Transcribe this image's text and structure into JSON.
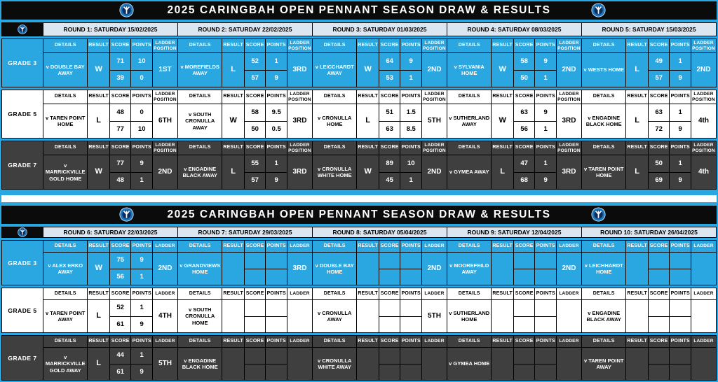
{
  "title": "2025 CARINGBAH OPEN PENNANT SEASON DRAW & RESULTS",
  "logo_name": "club-badge-logo",
  "colors": {
    "page_blue": "#2aa7e0",
    "round_header_bg": "#dce6f1",
    "grade7_dark": "#3f3f3f",
    "title_bar_black": "#0b0b0b",
    "logo_ring_blue": "#1b75bc",
    "logo_navy": "#0c2d5c"
  },
  "labels": {
    "details": "DETAILS",
    "result": "RESULT",
    "score": "SCORE",
    "points": "POINTS"
  },
  "tables": [
    {
      "ladder_label": "LADDER POSITION",
      "rounds": [
        "ROUND 1: SATURDAY 15/02/2025",
        "ROUND 2: SATURDAY 22/02/2025",
        "ROUND 3: SATURDAY 01/03/2025",
        "ROUND 4: SATURDAY 08/03/2025",
        "ROUND 5: SATURDAY 15/03/2025"
      ],
      "grades": [
        {
          "label": "GRADE 3",
          "theme": "blue",
          "cells": [
            {
              "details": "v DOUBLE BAY AWAY",
              "result": "W",
              "score_for": "71",
              "score_against": "39",
              "points_for": "10",
              "points_against": "0",
              "ladder": "1ST"
            },
            {
              "details": "v MOREFIELDS AWAY",
              "result": "L",
              "score_for": "52",
              "score_against": "57",
              "points_for": "1",
              "points_against": "9",
              "ladder": "3RD"
            },
            {
              "details": "v LEICCHARDT AWAY",
              "result": "W",
              "score_for": "64",
              "score_against": "53",
              "points_for": "9",
              "points_against": "1",
              "ladder": "2ND"
            },
            {
              "details": "v SYLVANIA HOME",
              "result": "W",
              "score_for": "58",
              "score_against": "50",
              "points_for": "9",
              "points_against": "1",
              "ladder": "2ND"
            },
            {
              "details": "v WESTS HOME",
              "result": "L",
              "score_for": "49",
              "score_against": "57",
              "points_for": "1",
              "points_against": "9",
              "ladder": "2ND"
            }
          ]
        },
        {
          "label": "GRADE 5",
          "theme": "white",
          "cells": [
            {
              "details": "v TAREN POINT HOME",
              "result": "L",
              "score_for": "48",
              "score_against": "77",
              "points_for": "0",
              "points_against": "10",
              "ladder": "6TH"
            },
            {
              "details": "v SOUTH CRONULLA AWAY",
              "result": "W",
              "score_for": "58",
              "score_against": "50",
              "points_for": "9.5",
              "points_against": "0.5",
              "ladder": "3RD"
            },
            {
              "details": "v CRONULLA HOME",
              "result": "L",
              "score_for": "51",
              "score_against": "63",
              "points_for": "1.5",
              "points_against": "8.5",
              "ladder": "5TH"
            },
            {
              "details": "v SUTHERLAND AWAY",
              "result": "W",
              "score_for": "63",
              "score_against": "56",
              "points_for": "9",
              "points_against": "1",
              "ladder": "3RD"
            },
            {
              "details": "v ENGADINE BLACK HOME",
              "result": "L",
              "score_for": "63",
              "score_against": "72",
              "points_for": "1",
              "points_against": "9",
              "ladder": "4th"
            }
          ]
        },
        {
          "label": "GRADE 7",
          "theme": "dark",
          "cells": [
            {
              "details": "v MARRICKVILLE GOLD HOME",
              "result": "W",
              "score_for": "77",
              "score_against": "48",
              "points_for": "9",
              "points_against": "1",
              "ladder": "2ND"
            },
            {
              "details": "v ENGADINE BLACK AWAY",
              "result": "L",
              "score_for": "55",
              "score_against": "57",
              "points_for": "1",
              "points_against": "9",
              "ladder": "3RD"
            },
            {
              "details": "v CRONULLA WHITE HOME",
              "result": "W",
              "score_for": "89",
              "score_against": "45",
              "points_for": "10",
              "points_against": "1",
              "ladder": "2ND"
            },
            {
              "details": "v GYMEA AWAY",
              "result": "L",
              "score_for": "47",
              "score_against": "68",
              "points_for": "1",
              "points_against": "9",
              "ladder": "3RD"
            },
            {
              "details": "v TAREN POINT HOME",
              "result": "L",
              "score_for": "50",
              "score_against": "69",
              "points_for": "1",
              "points_against": "9",
              "ladder": "4th"
            }
          ]
        }
      ]
    },
    {
      "ladder_label": "LADDER",
      "rounds": [
        "ROUND 6: SATURDAY 22/03/2025",
        "ROUND 7: SATURDAY 29/03/2025",
        "ROUND 8: SATURDAY 05/04/2025",
        "ROUND 9: SATURDAY 12/04/2025",
        "ROUND 10: SATURDAY 26/04/2025"
      ],
      "grades": [
        {
          "label": "GRADE 3",
          "theme": "blue",
          "cells": [
            {
              "details": "v ALEX ERKO AWAY",
              "result": "W",
              "score_for": "75",
              "score_against": "56",
              "points_for": "9",
              "points_against": "1",
              "ladder": "2ND"
            },
            {
              "details": "v GRANDVIEWS HOME",
              "result": "",
              "score_for": "",
              "score_against": "",
              "points_for": "",
              "points_against": "",
              "ladder": "3RD"
            },
            {
              "details": "v DOUBLE BAY HOME",
              "result": "",
              "score_for": "",
              "score_against": "",
              "points_for": "",
              "points_against": "",
              "ladder": "2ND"
            },
            {
              "details": "v MOOREFEILD AWAY",
              "result": "",
              "score_for": "",
              "score_against": "",
              "points_for": "",
              "points_against": "",
              "ladder": "2ND"
            },
            {
              "details": "v LEICHHARDT HOME",
              "result": "",
              "score_for": "",
              "score_against": "",
              "points_for": "",
              "points_against": "",
              "ladder": ""
            }
          ]
        },
        {
          "label": "GRADE 5",
          "theme": "white",
          "cells": [
            {
              "details": "v TAREN POINT AWAY",
              "result": "L",
              "score_for": "52",
              "score_against": "61",
              "points_for": "1",
              "points_against": "9",
              "ladder": "4TH"
            },
            {
              "details": "v SOUTH CRONULLA HOME",
              "result": "",
              "score_for": "",
              "score_against": "",
              "points_for": "",
              "points_against": "",
              "ladder": ""
            },
            {
              "details": "v CRONULLA AWAY",
              "result": "",
              "score_for": "",
              "score_against": "",
              "points_for": "",
              "points_against": "",
              "ladder": "5TH"
            },
            {
              "details": "v SUTHERLAND HOME",
              "result": "",
              "score_for": "",
              "score_against": "",
              "points_for": "",
              "points_against": "",
              "ladder": ""
            },
            {
              "details": "v ENGADINE BLACK AWAY",
              "result": "",
              "score_for": "",
              "score_against": "",
              "points_for": "",
              "points_against": "",
              "ladder": ""
            }
          ]
        },
        {
          "label": "GRADE 7",
          "theme": "dark",
          "cells": [
            {
              "details": "v MARRICKVILLE GOLD AWAY",
              "result": "L",
              "score_for": "44",
              "score_against": "61",
              "points_for": "1",
              "points_against": "9",
              "ladder": "5TH"
            },
            {
              "details": "v ENGADINE BLACK HOME",
              "result": "",
              "score_for": "",
              "score_against": "",
              "points_for": "",
              "points_against": "",
              "ladder": ""
            },
            {
              "details": "v CRONULLA WHITE AWAY",
              "result": "",
              "score_for": "",
              "score_against": "",
              "points_for": "",
              "points_against": "",
              "ladder": ""
            },
            {
              "details": "v GYMEA HOME",
              "result": "",
              "score_for": "",
              "score_against": "",
              "points_for": "",
              "points_against": "",
              "ladder": ""
            },
            {
              "details": "v TAREN POINT AWAY",
              "result": "",
              "score_for": "",
              "score_against": "",
              "points_for": "",
              "points_against": "",
              "ladder": ""
            }
          ]
        }
      ]
    }
  ]
}
